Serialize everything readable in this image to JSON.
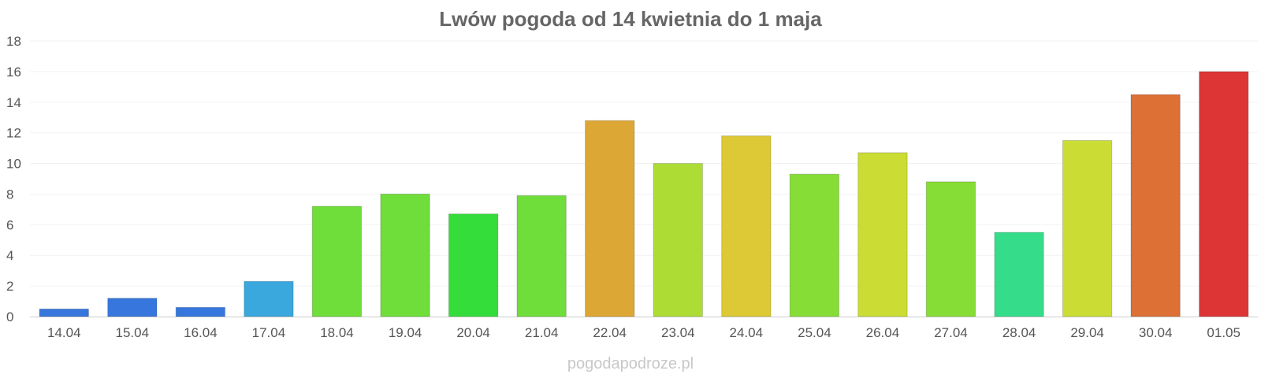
{
  "chart_data": {
    "type": "bar",
    "title": "Lwów pogoda od 14 kwietnia do 1 maja",
    "xlabel": "",
    "ylabel": "",
    "categories": [
      "14.04",
      "15.04",
      "16.04",
      "17.04",
      "18.04",
      "19.04",
      "20.04",
      "21.04",
      "22.04",
      "23.04",
      "24.04",
      "25.04",
      "26.04",
      "27.04",
      "28.04",
      "29.04",
      "30.04",
      "01.05"
    ],
    "values": [
      0.5,
      1.2,
      0.6,
      2.3,
      7.2,
      8.0,
      6.7,
      7.9,
      12.8,
      10.0,
      11.8,
      9.3,
      10.7,
      8.8,
      5.5,
      11.5,
      14.5,
      16.0
    ],
    "colors": [
      "#3777dd",
      "#3777dd",
      "#3777dd",
      "#3aa7dd",
      "#6fdd3a",
      "#6fdd3a",
      "#35dd3a",
      "#6fdd3a",
      "#dda735",
      "#addd35",
      "#ddc935",
      "#86dd35",
      "#cbdd35",
      "#86dd35",
      "#35dd8a",
      "#cbdd35",
      "#dd7035",
      "#dd3535"
    ],
    "ylim": [
      0,
      18
    ],
    "yticks": [
      0,
      2,
      4,
      6,
      8,
      10,
      12,
      14,
      16,
      18
    ],
    "grid": true,
    "legend": "none"
  },
  "watermark": "pogodapodroze.pl"
}
